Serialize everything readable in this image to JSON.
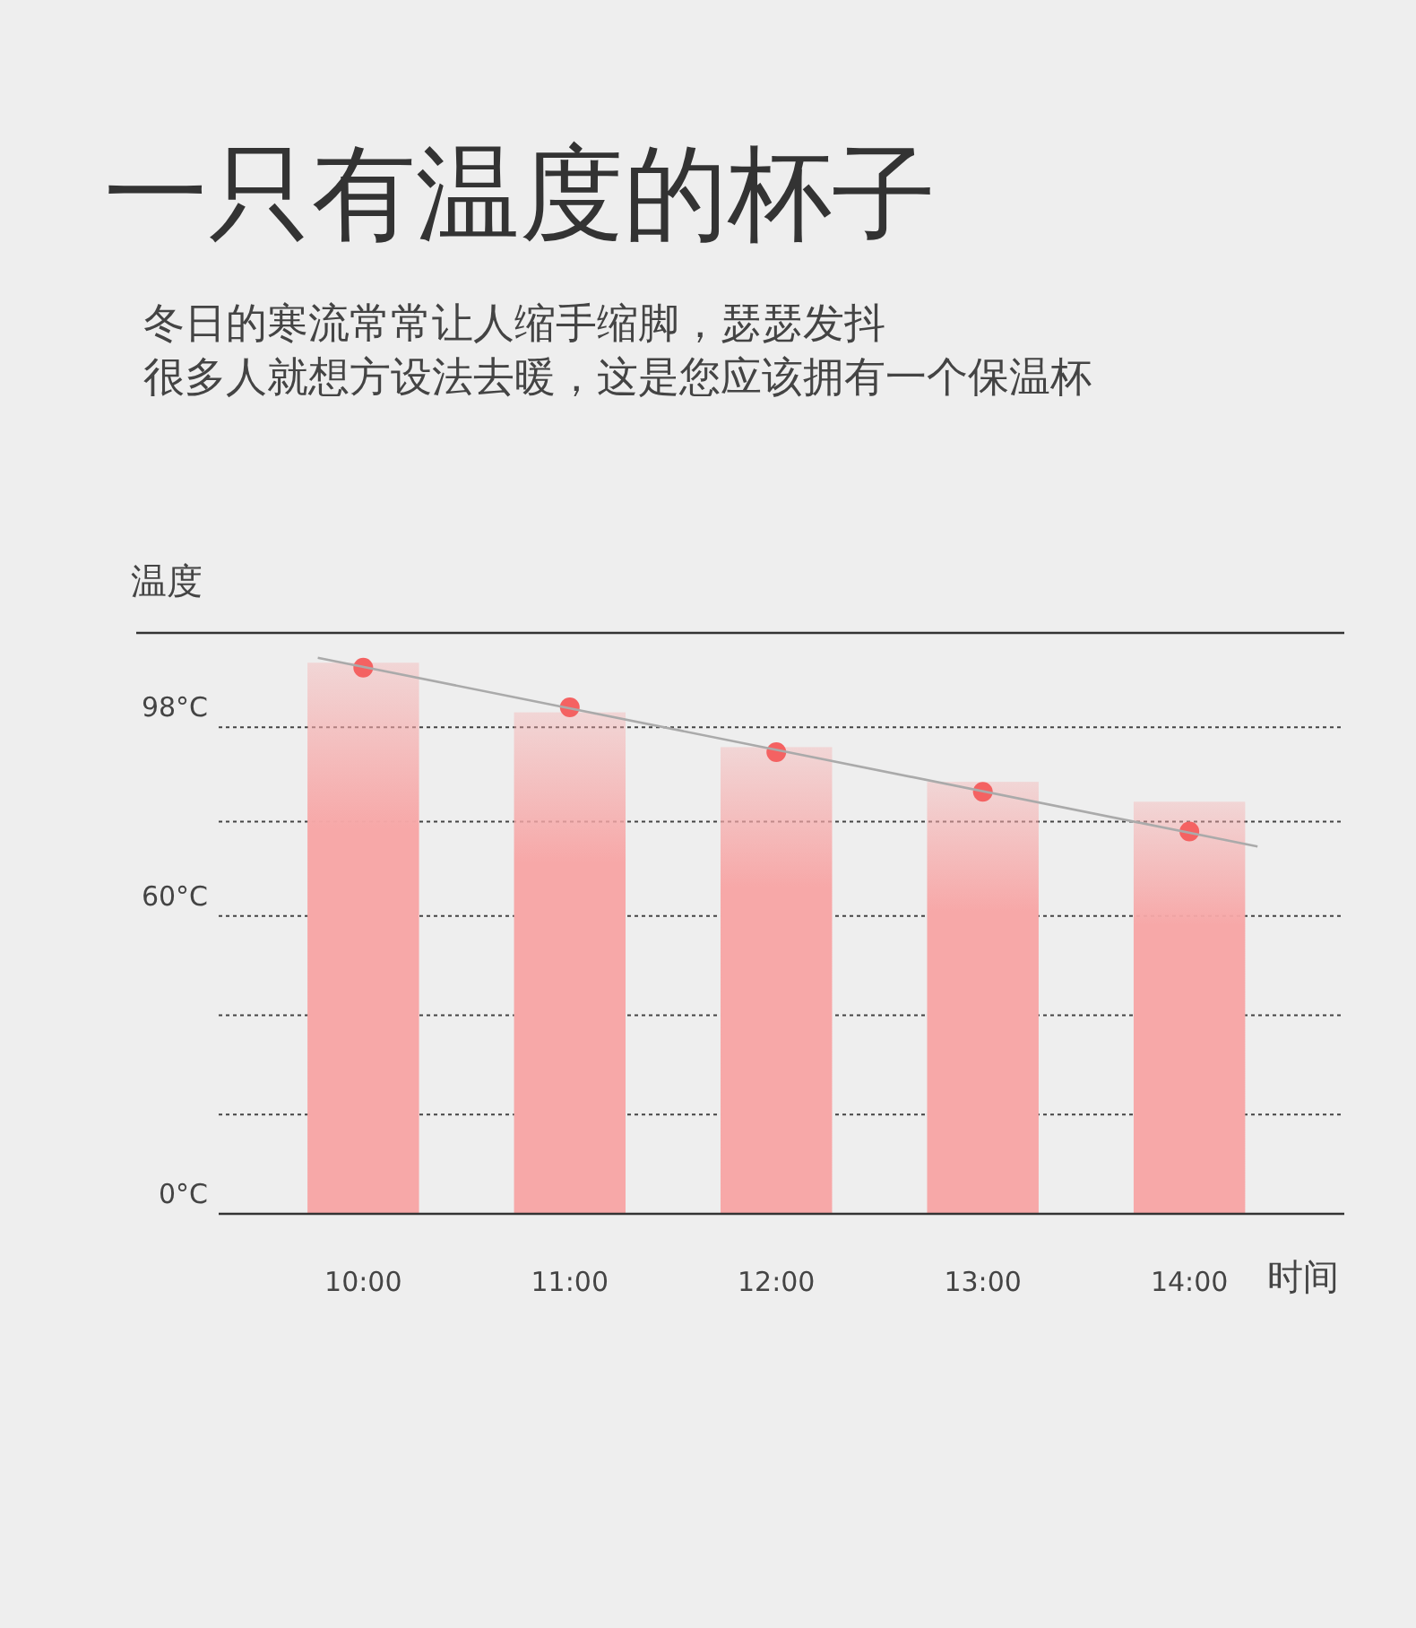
{
  "chart_data": {
    "type": "bar",
    "title": "一只有温度的杯子",
    "subtitle": "冬日的寒流常常让人缩手缩脚，瑟瑟发抖",
    "annotations": [
      "很多人就想方设法去暖，这是您应该拥有一个保温杯"
    ],
    "ylabel": "温度",
    "xlabel": "时间",
    "x": [
      10,
      11,
      12,
      13,
      14
    ],
    "series": [
      {
        "color": "#f7a8a8",
        "values": [
          111,
          101,
          94,
          87,
          83
        ]
      },
      {
        "type": "scatter",
        "color": "#f46262",
        "marker": "circle",
        "values": [
          110,
          102,
          93,
          85,
          77
        ]
      },
      {
        "type": "line",
        "color": "#aaaaaa",
        "x": [
          9.78,
          14.33
        ],
        "values": [
          112,
          74
        ]
      }
    ],
    "xlim": [
      9.3,
      14.75
    ],
    "xticks": [
      {
        "value": 10,
        "label": "10:00"
      },
      {
        "value": 11,
        "label": "11:00"
      },
      {
        "value": 12,
        "label": "12:00"
      },
      {
        "value": 13,
        "label": "13:00"
      },
      {
        "value": 14,
        "label": "14:00"
      }
    ],
    "ylim": [
      0,
      117
    ],
    "yticks": [
      {
        "value": 0,
        "label": "0°C"
      },
      {
        "value": 20,
        "label": null
      },
      {
        "value": 40,
        "label": null
      },
      {
        "value": 60,
        "label": "60°C"
      },
      {
        "value": 79,
        "label": null
      },
      {
        "value": 98,
        "label": "98°C"
      }
    ],
    "grid": "y"
  }
}
